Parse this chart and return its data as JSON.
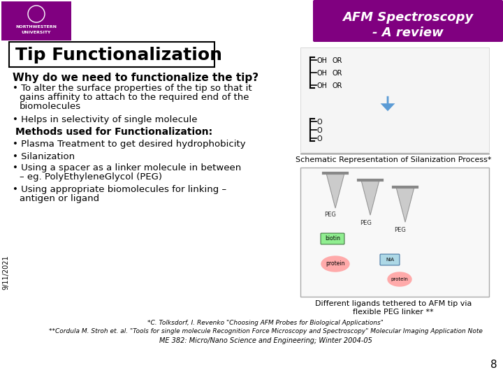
{
  "bg_color": "#ffffff",
  "header_bg": "#800080",
  "header_text1": "AFM Spectroscopy",
  "header_text2": "- A review",
  "header_text_color": "#ffffff",
  "logo_bg": "#800080",
  "slide_title": "Tip Functionalization",
  "slide_title_box_color": "#ffffff",
  "slide_title_border": "#000000",
  "title_fontsize": 18,
  "heading1": "Why do we need to functionalize the tip?",
  "heading1_fontsize": 11,
  "caption1": "Schematic Representation of Silanization Process*",
  "caption2": "Different ligands tethered to AFM tip via\nflexible PEG linker **",
  "footnote1": "*C. Tolksdorf, I. Revenko \"Choosing AFM Probes for Biological Applications\"",
  "footnote2": "**Cordula M. Stroh et. al. \"Tools for single molecule Recognition Force Microscopy and Spectroscopy\" Molecular Imaging Application Note",
  "footnote3": "ME 382: Micro/Nano Science and Engineering; Winter 2004-05",
  "slide_number": "8",
  "date_text": "9/11/2021",
  "body_fontsize": 9.5,
  "caption_fontsize": 8,
  "footnote_fontsize": 6.5
}
